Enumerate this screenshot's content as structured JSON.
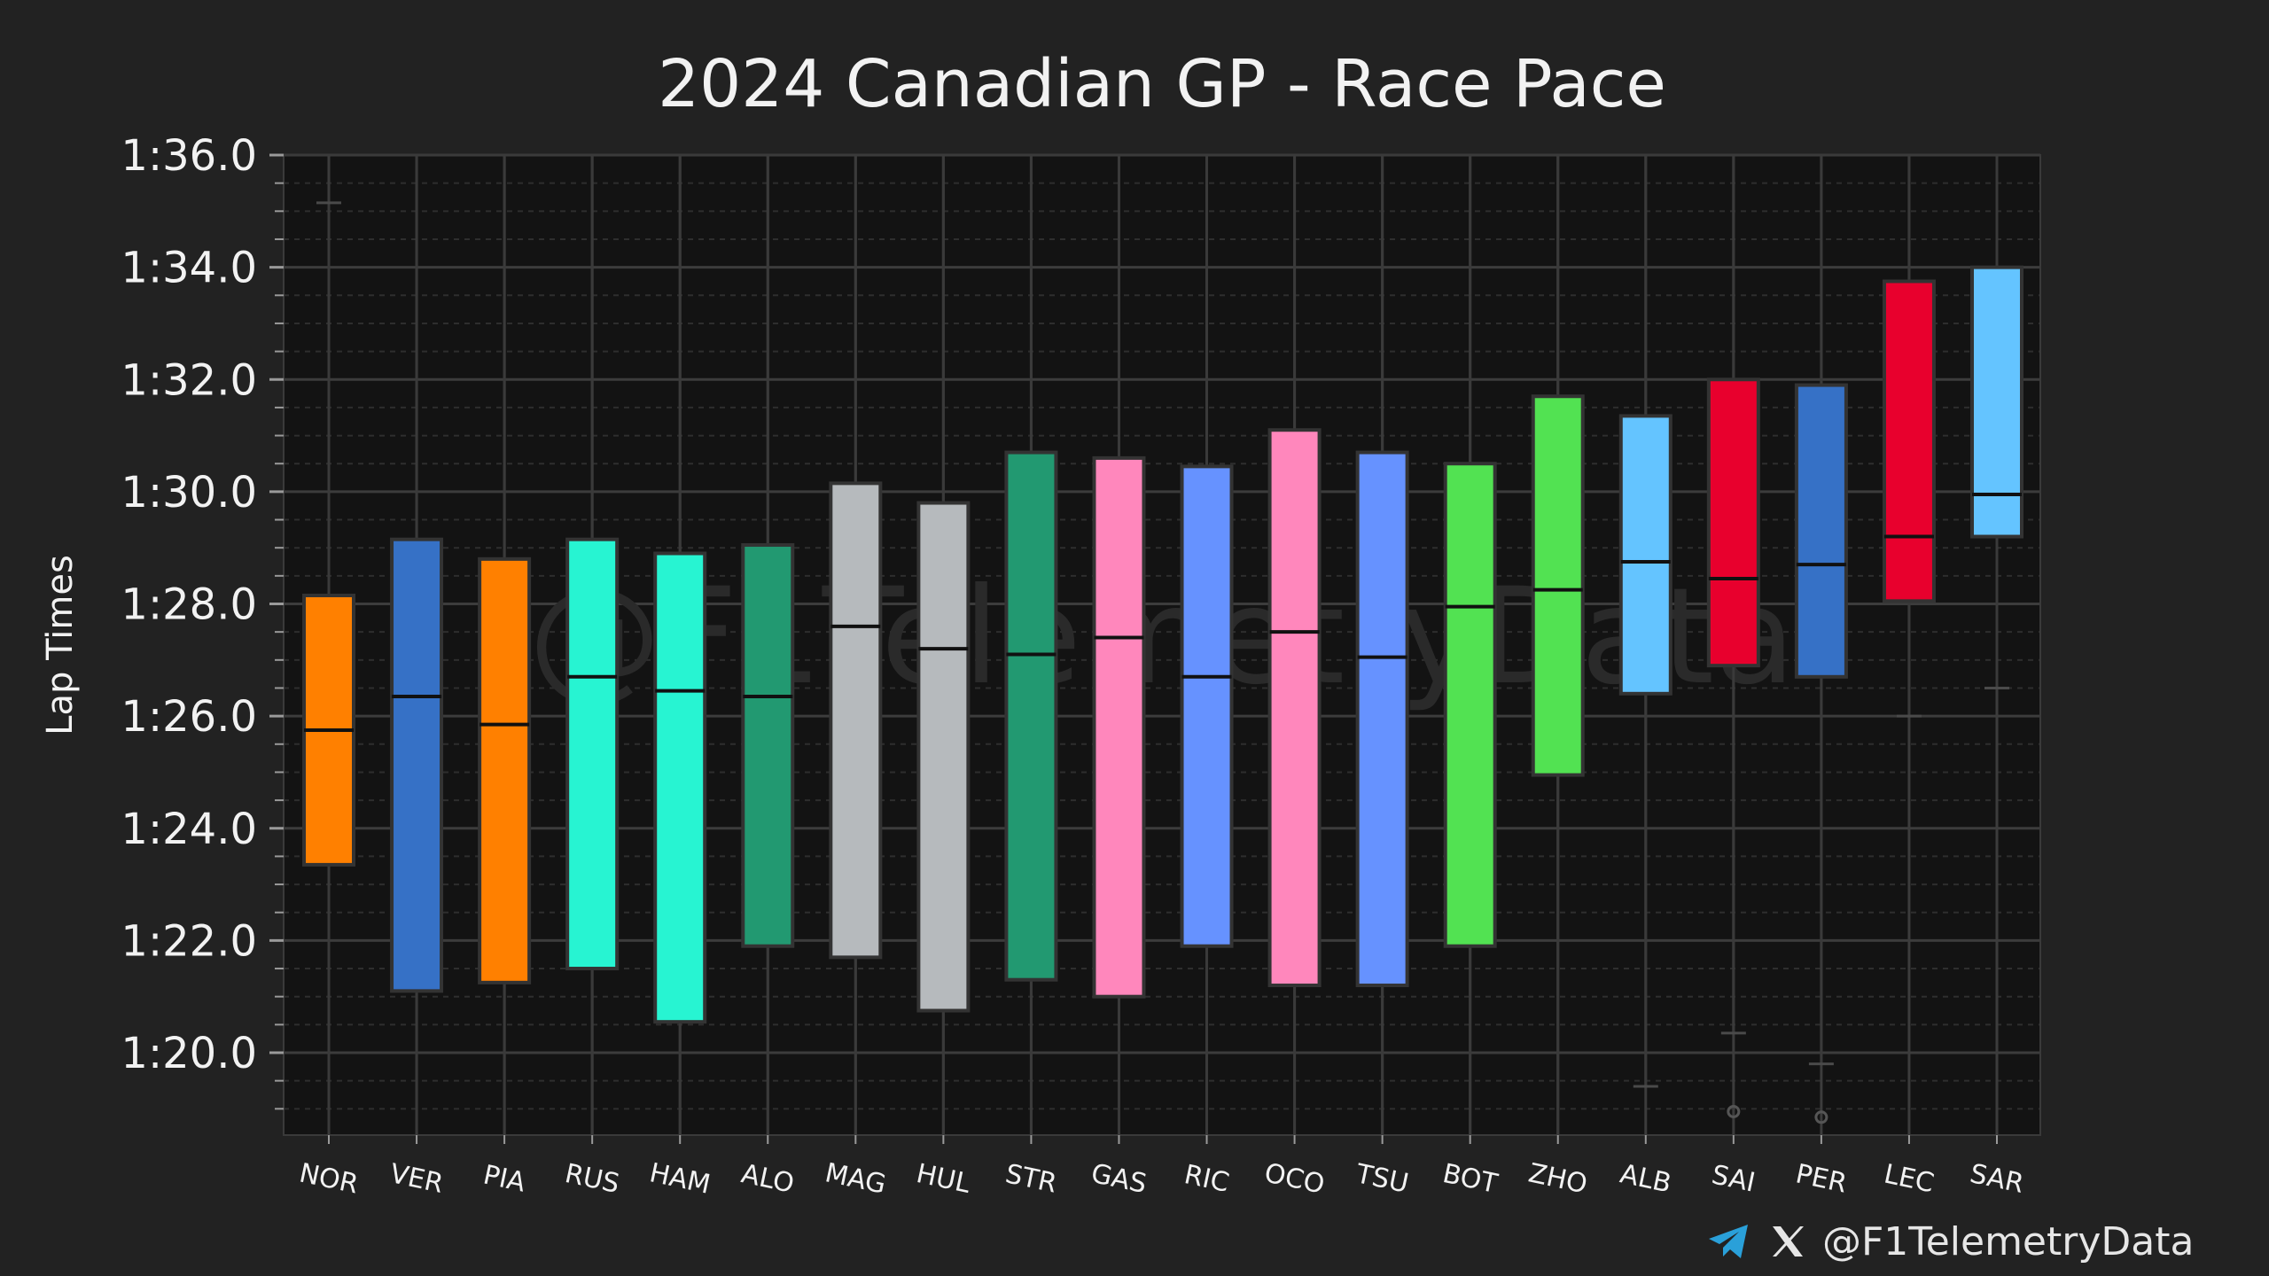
{
  "chart_data": {
    "type": "box",
    "title": "2024 Canadian GP - Race Pace",
    "ylabel": "Lap Times",
    "ylim": [
      78.5,
      96.0
    ],
    "yticks": [
      80,
      82,
      84,
      86,
      88,
      90,
      92,
      94,
      96
    ],
    "ytick_labels": [
      "1:20.0",
      "1:22.0",
      "1:24.0",
      "1:26.0",
      "1:28.0",
      "1:30.0",
      "1:32.0",
      "1:34.0",
      "1:36.0"
    ],
    "grid": true,
    "categories": [
      "NOR",
      "VER",
      "PIA",
      "RUS",
      "HAM",
      "ALO",
      "MAG",
      "HUL",
      "STR",
      "GAS",
      "RIC",
      "OCO",
      "TSU",
      "BOT",
      "ZHO",
      "ALB",
      "SAI",
      "PER",
      "LEC",
      "SAR"
    ],
    "colors": [
      "#ff8000",
      "#3671c6",
      "#ff8000",
      "#27f4d2",
      "#27f4d2",
      "#229971",
      "#b6babd",
      "#b6babd",
      "#229971",
      "#ff87bc",
      "#6692ff",
      "#ff87bc",
      "#6692ff",
      "#52e252",
      "#52e252",
      "#64c4ff",
      "#e8002d",
      "#3671c6",
      "#e8002d",
      "#64c4ff"
    ],
    "boxes": [
      {
        "whisker_low": 78.5,
        "q1": 83.35,
        "median": 85.75,
        "q3": 88.15,
        "whisker_high": 95.15,
        "fliers": []
      },
      {
        "whisker_low": 78.5,
        "q1": 81.1,
        "median": 86.35,
        "q3": 89.15,
        "whisker_high": 96.0,
        "fliers": []
      },
      {
        "whisker_low": 78.5,
        "q1": 81.25,
        "median": 85.85,
        "q3": 88.8,
        "whisker_high": 96.0,
        "fliers": []
      },
      {
        "whisker_low": 78.5,
        "q1": 81.5,
        "median": 86.7,
        "q3": 89.15,
        "whisker_high": 96.0,
        "fliers": []
      },
      {
        "whisker_low": 78.5,
        "q1": 80.55,
        "median": 86.45,
        "q3": 88.9,
        "whisker_high": 96.0,
        "fliers": []
      },
      {
        "whisker_low": 78.5,
        "q1": 81.9,
        "median": 86.35,
        "q3": 89.05,
        "whisker_high": 96.0,
        "fliers": []
      },
      {
        "whisker_low": 78.5,
        "q1": 81.7,
        "median": 87.6,
        "q3": 90.15,
        "whisker_high": 96.0,
        "fliers": []
      },
      {
        "whisker_low": 78.5,
        "q1": 80.75,
        "median": 87.2,
        "q3": 89.8,
        "whisker_high": 96.0,
        "fliers": []
      },
      {
        "whisker_low": 78.5,
        "q1": 81.3,
        "median": 87.1,
        "q3": 90.7,
        "whisker_high": 96.0,
        "fliers": []
      },
      {
        "whisker_low": 78.5,
        "q1": 81.0,
        "median": 87.4,
        "q3": 90.6,
        "whisker_high": 96.0,
        "fliers": []
      },
      {
        "whisker_low": 78.5,
        "q1": 81.9,
        "median": 86.7,
        "q3": 90.45,
        "whisker_high": 96.0,
        "fliers": []
      },
      {
        "whisker_low": 78.5,
        "q1": 81.2,
        "median": 87.5,
        "q3": 91.1,
        "whisker_high": 96.0,
        "fliers": []
      },
      {
        "whisker_low": 78.5,
        "q1": 81.2,
        "median": 87.05,
        "q3": 90.7,
        "whisker_high": 96.0,
        "fliers": []
      },
      {
        "whisker_low": 78.5,
        "q1": 81.9,
        "median": 87.95,
        "q3": 90.5,
        "whisker_high": 96.0,
        "fliers": []
      },
      {
        "whisker_low": 78.5,
        "q1": 84.95,
        "median": 88.25,
        "q3": 91.7,
        "whisker_high": 96.0,
        "fliers": []
      },
      {
        "whisker_low": 79.4,
        "q1": 86.4,
        "median": 88.75,
        "q3": 91.35,
        "whisker_high": 96.0,
        "fliers": []
      },
      {
        "whisker_low": 80.35,
        "q1": 86.9,
        "median": 88.45,
        "q3": 92.0,
        "whisker_high": 96.0,
        "fliers": [
          78.95
        ]
      },
      {
        "whisker_low": 79.8,
        "q1": 86.7,
        "median": 88.7,
        "q3": 91.9,
        "whisker_high": 96.0,
        "fliers": [
          78.85
        ]
      },
      {
        "whisker_low": 86.0,
        "q1": 88.05,
        "median": 89.2,
        "q3": 93.75,
        "whisker_high": 96.0,
        "fliers": []
      },
      {
        "whisker_low": 86.5,
        "q1": 89.2,
        "median": 89.95,
        "q3": 94.0,
        "whisker_high": 96.0,
        "fliers": []
      }
    ],
    "watermark": "@F1TelemetryData",
    "footer_handle": "@F1TelemetryData"
  }
}
